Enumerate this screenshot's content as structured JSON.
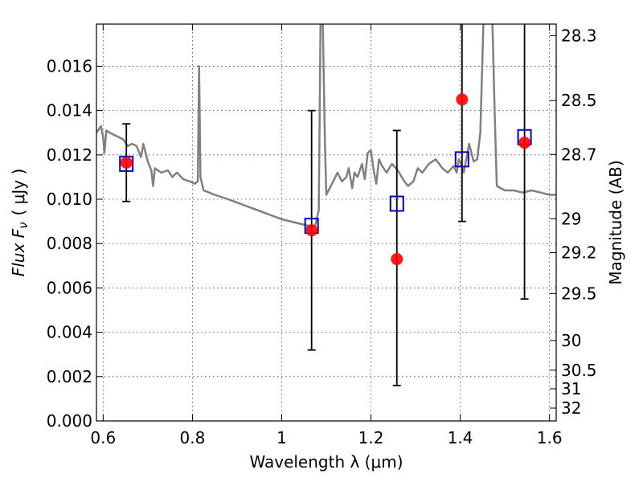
{
  "chart_data": {
    "type": "scatter",
    "title": "",
    "xlabel": "Wavelength  λ (μm)",
    "ylabel": "Flux  F",
    "ylabel_sub": "ν",
    "ylabel_unit": "( μJy )",
    "ylabel_right": "Magnitude (AB)",
    "xlim": [
      0.585,
      1.615
    ],
    "ylim": [
      0.0,
      0.0179
    ],
    "grid": true,
    "x_ticks": [
      0.6,
      0.8,
      1.0,
      1.2,
      1.4,
      1.6
    ],
    "x_tick_labels": [
      "0.6",
      "0.8",
      "1",
      "1.2",
      "1.4",
      "1.6"
    ],
    "y_ticks": [
      0.0,
      0.002,
      0.004,
      0.006,
      0.008,
      0.01,
      0.012,
      0.014,
      0.016
    ],
    "y_tick_labels": [
      "0.000",
      "0.002",
      "0.004",
      "0.006",
      "0.008",
      "0.010",
      "0.012",
      "0.014",
      "0.016"
    ],
    "right_axis_ticks": [
      {
        "label": "28.3",
        "flux": 0.01738
      },
      {
        "label": "28.5",
        "flux": 0.01445
      },
      {
        "label": "28.7",
        "flux": 0.01202
      },
      {
        "label": "29",
        "flux": 0.00912
      },
      {
        "label": "29.2",
        "flux": 0.00759
      },
      {
        "label": "29.5",
        "flux": 0.00575
      },
      {
        "label": "30",
        "flux": 0.00363
      },
      {
        "label": "30.5",
        "flux": 0.00229
      },
      {
        "label": "31",
        "flux": 0.00145
      },
      {
        "label": "32",
        "flux": 0.00058
      }
    ],
    "series": [
      {
        "kind": "line",
        "color": "#808080",
        "points": [
          [
            0.585,
            0.013
          ],
          [
            0.595,
            0.0133
          ],
          [
            0.6,
            0.0128
          ],
          [
            0.603,
            0.0121
          ],
          [
            0.607,
            0.0131
          ],
          [
            0.615,
            0.013
          ],
          [
            0.625,
            0.0129
          ],
          [
            0.635,
            0.0128
          ],
          [
            0.645,
            0.0127
          ],
          [
            0.655,
            0.0124
          ],
          [
            0.665,
            0.0125
          ],
          [
            0.675,
            0.0124
          ],
          [
            0.685,
            0.0119
          ],
          [
            0.69,
            0.0125
          ],
          [
            0.7,
            0.0117
          ],
          [
            0.708,
            0.0113
          ],
          [
            0.712,
            0.0106
          ],
          [
            0.716,
            0.0114
          ],
          [
            0.73,
            0.0112
          ],
          [
            0.745,
            0.0113
          ],
          [
            0.755,
            0.011
          ],
          [
            0.765,
            0.0112
          ],
          [
            0.78,
            0.0109
          ],
          [
            0.795,
            0.0108
          ],
          [
            0.805,
            0.0107
          ],
          [
            0.812,
            0.0108
          ],
          [
            0.815,
            0.016
          ],
          [
            0.818,
            0.011
          ],
          [
            0.825,
            0.0104
          ],
          [
            0.85,
            0.0102
          ],
          [
            0.88,
            0.01
          ],
          [
            0.92,
            0.0097
          ],
          [
            0.96,
            0.0094
          ],
          [
            1.0,
            0.0091
          ],
          [
            1.04,
            0.0089
          ],
          [
            1.06,
            0.0088
          ],
          [
            1.075,
            0.0088
          ],
          [
            1.083,
            0.0095
          ],
          [
            1.087,
            0.018
          ],
          [
            1.092,
            0.018
          ],
          [
            1.097,
            0.0125
          ],
          [
            1.1,
            0.0102
          ],
          [
            1.11,
            0.0106
          ],
          [
            1.125,
            0.0112
          ],
          [
            1.135,
            0.0108
          ],
          [
            1.145,
            0.011
          ],
          [
            1.15,
            0.0114
          ],
          [
            1.158,
            0.0105
          ],
          [
            1.163,
            0.0112
          ],
          [
            1.17,
            0.011
          ],
          [
            1.18,
            0.0116
          ],
          [
            1.186,
            0.0109
          ],
          [
            1.193,
            0.0121
          ],
          [
            1.2,
            0.0122
          ],
          [
            1.206,
            0.0113
          ],
          [
            1.212,
            0.0107
          ],
          [
            1.218,
            0.0118
          ],
          [
            1.225,
            0.0115
          ],
          [
            1.235,
            0.0112
          ],
          [
            1.247,
            0.0116
          ],
          [
            1.26,
            0.0113
          ],
          [
            1.275,
            0.0108
          ],
          [
            1.283,
            0.0106
          ],
          [
            1.295,
            0.0108
          ],
          [
            1.305,
            0.0114
          ],
          [
            1.315,
            0.0112
          ],
          [
            1.33,
            0.0116
          ],
          [
            1.345,
            0.0118
          ],
          [
            1.36,
            0.0114
          ],
          [
            1.372,
            0.0112
          ],
          [
            1.385,
            0.0115
          ],
          [
            1.392,
            0.0112
          ],
          [
            1.397,
            0.0118
          ],
          [
            1.402,
            0.0116
          ],
          [
            1.408,
            0.0112
          ],
          [
            1.42,
            0.0125
          ],
          [
            1.43,
            0.0117
          ],
          [
            1.438,
            0.0118
          ],
          [
            1.445,
            0.013
          ],
          [
            1.452,
            0.018
          ],
          [
            1.472,
            0.018
          ],
          [
            1.477,
            0.014
          ],
          [
            1.482,
            0.0106
          ],
          [
            1.5,
            0.0104
          ],
          [
            1.52,
            0.0104
          ],
          [
            1.54,
            0.0103
          ],
          [
            1.56,
            0.0104
          ],
          [
            1.58,
            0.0103
          ],
          [
            1.6,
            0.0102
          ],
          [
            1.615,
            0.0102
          ]
        ]
      },
      {
        "kind": "errorbar",
        "color": "#000000",
        "points": [
          {
            "x": 0.652,
            "low": 0.0099,
            "high": 0.0134
          },
          {
            "x": 1.067,
            "low": 0.0032,
            "high": 0.014
          },
          {
            "x": 1.258,
            "low": 0.0016,
            "high": 0.0131
          },
          {
            "x": 1.404,
            "low": 0.009,
            "high": 0.018
          },
          {
            "x": 1.544,
            "low": 0.0055,
            "high": 0.018
          }
        ]
      },
      {
        "kind": "open-square",
        "color": "#0000cc",
        "points": [
          [
            0.652,
            0.0116
          ],
          [
            1.067,
            0.0088
          ],
          [
            1.258,
            0.0098
          ],
          [
            1.404,
            0.0118
          ],
          [
            1.544,
            0.0128
          ]
        ]
      },
      {
        "kind": "filled-circle",
        "color": "#ff0000",
        "points": [
          [
            0.652,
            0.01165
          ],
          [
            1.067,
            0.0086
          ],
          [
            1.258,
            0.0073
          ],
          [
            1.404,
            0.0145
          ],
          [
            1.544,
            0.01255
          ]
        ]
      }
    ]
  }
}
